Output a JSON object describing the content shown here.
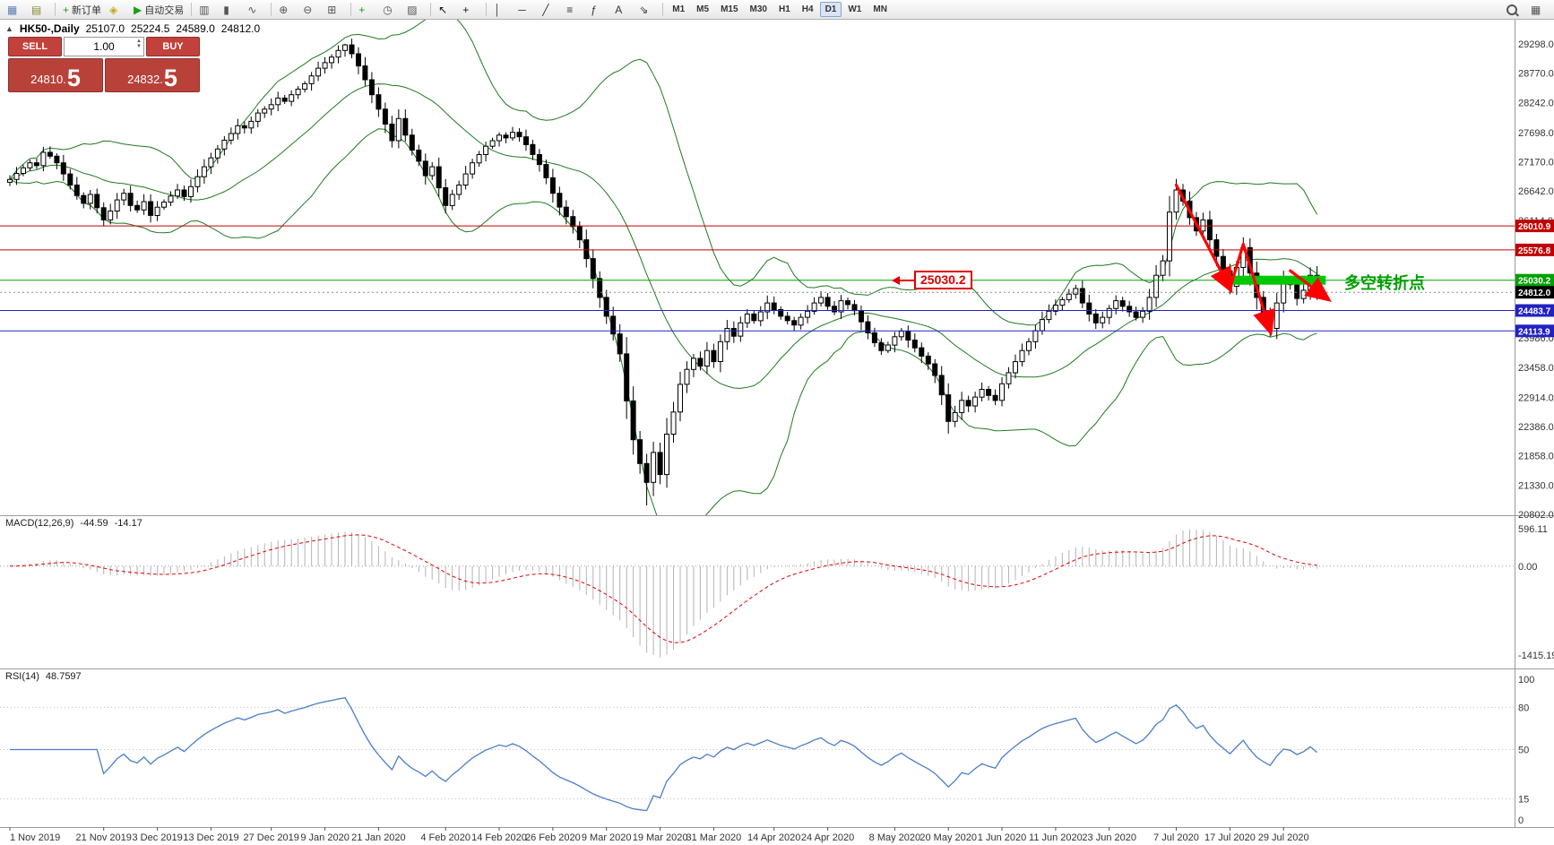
{
  "toolbar": {
    "buttons": [
      {
        "name": "new-chart-icon",
        "glyph": "▦",
        "color": "#5a7fb5"
      },
      {
        "name": "profiles-icon",
        "glyph": "▤",
        "color": "#8a8a33"
      },
      {
        "name": "sep"
      },
      {
        "name": "new-order-button",
        "glyph": "+",
        "glyph_color": "#18a018",
        "label": "新订单"
      },
      {
        "name": "metaeditor-icon",
        "glyph": "◈",
        "color": "#caa41a"
      },
      {
        "name": "autotrading-button",
        "glyph": "▶",
        "glyph_color": "#18a018",
        "label": "自动交易"
      },
      {
        "name": "sep"
      },
      {
        "name": "bars-icon",
        "glyph": "▥",
        "color": "#555555"
      },
      {
        "name": "candles-icon",
        "glyph": "▮",
        "color": "#555555"
      },
      {
        "name": "line-chart-icon",
        "glyph": "∿",
        "color": "#555555"
      },
      {
        "name": "sep"
      },
      {
        "name": "zoom-in-icon",
        "glyph": "⊕",
        "color": "#555555"
      },
      {
        "name": "zoom-out-icon",
        "glyph": "⊖",
        "color": "#555555"
      },
      {
        "name": "tile-windows-icon",
        "glyph": "⊞",
        "color": "#555555"
      },
      {
        "name": "sep"
      },
      {
        "name": "add-indicator-icon",
        "glyph": "+",
        "glyph_color": "#18a018"
      },
      {
        "name": "period-icon",
        "glyph": "◷",
        "color": "#555555"
      },
      {
        "name": "templates-icon",
        "glyph": "▨",
        "color": "#555555"
      },
      {
        "name": "sep"
      },
      {
        "name": "cursor-icon",
        "glyph": "↖",
        "color": "#111111"
      },
      {
        "name": "crosshair-icon",
        "glyph": "+",
        "color": "#111111"
      },
      {
        "name": "sep"
      },
      {
        "name": "vertical-line-icon",
        "glyph": "│",
        "color": "#333333"
      },
      {
        "name": "horizontal-line-icon",
        "glyph": "─",
        "color": "#333333"
      },
      {
        "name": "trendline-icon",
        "glyph": "╱",
        "color": "#333333"
      },
      {
        "name": "channel-icon",
        "glyph": "≡",
        "color": "#333333"
      },
      {
        "name": "fibonacci-icon",
        "glyph": "ƒ",
        "color": "#333333"
      },
      {
        "name": "text-icon",
        "glyph": "A",
        "color": "#333333"
      },
      {
        "name": "arrows-icon",
        "glyph": "⇘",
        "color": "#333333"
      },
      {
        "name": "sep"
      }
    ],
    "timeframes": [
      "M1",
      "M5",
      "M15",
      "M30",
      "H1",
      "H4",
      "D1",
      "W1",
      "MN"
    ],
    "active_timeframe": "D1",
    "right_icons": [
      {
        "name": "search-button",
        "css": "mag"
      },
      {
        "name": "layout-button",
        "glyph": "▦"
      }
    ]
  },
  "chart_header": {
    "marker": "▲",
    "symbol_period": "HK50-,Daily",
    "open": "25107.0",
    "high": "25224.5",
    "low": "24589.0",
    "close": "24812.0"
  },
  "trade_panel": {
    "sell_label": "SELL",
    "buy_label": "BUY",
    "volume": "1.00",
    "sell_price_small": "24810.",
    "sell_price_big": "5",
    "buy_price_small": "24832.",
    "buy_price_big": "5"
  },
  "panels": {
    "macd": {
      "label": "MACD(12,26,9)",
      "value_main": "-44.59",
      "value_signal": "-14.17",
      "scale_top": "596.11",
      "scale_zero": "0.00",
      "scale_bottom": "-1415.19"
    },
    "rsi": {
      "label": "RSI(14)",
      "value": "48.7597",
      "scale": [
        "100",
        "80",
        "50",
        "15",
        "0"
      ],
      "levels": [
        80,
        50,
        15
      ]
    }
  },
  "annotations": {
    "callout_text": "25030.2",
    "turning_text": "多空转折点",
    "zigzag_points": [
      [
        174,
        26750
      ],
      [
        182,
        24880
      ],
      [
        184,
        25680
      ],
      [
        188,
        24120
      ]
    ],
    "arrow2": [
      [
        191,
        25200
      ],
      [
        196.5,
        24700
      ]
    ],
    "band": {
      "from_idx": 181.5,
      "to_idx": 196.3,
      "price": 25030.2
    }
  },
  "colors": {
    "bull": "#ffffff",
    "bear": "#000000",
    "bollinger": "#1f7a1f",
    "macd_hist": "#b4b4b4",
    "macd_signal": "#e00000",
    "rsi_line": "#4a7dc8",
    "zigzag": "#ff0000",
    "band": "#00c800"
  },
  "chart_data": {
    "type": "candlestick",
    "symbol": "HK50-",
    "timeframe": "Daily",
    "first_open": 26800,
    "closes": [
      26850,
      26960,
      27060,
      27150,
      27100,
      27340,
      27270,
      27150,
      26950,
      26750,
      26560,
      26420,
      26580,
      26340,
      26120,
      26280,
      26480,
      26600,
      26380,
      26300,
      26450,
      26200,
      26350,
      26440,
      26550,
      26660,
      26540,
      26720,
      26900,
      27080,
      27240,
      27400,
      27560,
      27680,
      27820,
      27780,
      27900,
      28050,
      28120,
      28200,
      28320,
      28260,
      28380,
      28480,
      28580,
      28720,
      28860,
      28960,
      29060,
      29180,
      29280,
      29120,
      28900,
      28650,
      28380,
      28120,
      27850,
      27550,
      27950,
      27650,
      27380,
      27180,
      26920,
      27080,
      26700,
      26380,
      26580,
      26750,
      26950,
      27150,
      27300,
      27450,
      27550,
      27650,
      27600,
      27700,
      27620,
      27480,
      27300,
      27120,
      26880,
      26600,
      26350,
      26180,
      26000,
      25760,
      25420,
      25060,
      24720,
      24380,
      24060,
      23700,
      22850,
      22150,
      21720,
      21380,
      21920,
      21520,
      22250,
      22650,
      23150,
      23420,
      23620,
      23480,
      23760,
      23560,
      23920,
      24160,
      24020,
      24260,
      24420,
      24300,
      24460,
      24620,
      24500,
      24380,
      24300,
      24220,
      24360,
      24470,
      24620,
      24720,
      24560,
      24460,
      24660,
      24590,
      24480,
      24280,
      24080,
      23900,
      23760,
      23860,
      24010,
      24110,
      23950,
      23810,
      23660,
      23520,
      23310,
      22960,
      22480,
      22640,
      22860,
      22760,
      22920,
      23060,
      22950,
      22860,
      23160,
      23360,
      23560,
      23760,
      23920,
      24120,
      24320,
      24470,
      24580,
      24680,
      24780,
      24880,
      24620,
      24420,
      24260,
      24360,
      24520,
      24660,
      24560,
      24460,
      24360,
      24470,
      24720,
      25120,
      25380,
      26260,
      26660,
      26460,
      26160,
      25920,
      26120,
      25760,
      25460,
      25200,
      24920,
      25260,
      25620,
      25160,
      24720,
      24420,
      24160,
      24620,
      25020,
      24950,
      24700,
      24850,
      25120,
      24812
    ],
    "wick_overrides": [
      {
        "idx": 95,
        "low": 20960
      },
      {
        "idx": 50,
        "high": 29300
      }
    ],
    "overlays": {
      "bollinger": {
        "period": 20,
        "deviation": 2
      }
    },
    "hlines": [
      {
        "value": 26010.9,
        "label": "26010.9",
        "color": "#c00000",
        "style": "solid"
      },
      {
        "value": 25576.8,
        "label": "25576.8",
        "color": "#c00000",
        "style": "solid"
      },
      {
        "value": 25030.2,
        "label": "25030.2",
        "color": "#00a000",
        "style": "solid"
      },
      {
        "value": 24812.0,
        "label": "24812.0",
        "color": "#888888",
        "style": "dotted",
        "label_bg": "#000000"
      },
      {
        "value": 24483.7,
        "label": "24483.7",
        "color": "#2222c2",
        "style": "solid"
      },
      {
        "value": 24113.9,
        "label": "24113.9",
        "color": "#2222c2",
        "style": "solid"
      }
    ],
    "y_ticks": [
      29298.0,
      28770.0,
      28242.0,
      27698.0,
      27170.0,
      26642.0,
      26114.0,
      23986.0,
      23458.0,
      22914.0,
      22386.0,
      21858.0,
      21330.0,
      20802.0
    ],
    "x_ticks": [
      {
        "label": "1 Nov 2019",
        "idx": 0
      },
      {
        "label": "21 Nov 2019",
        "idx": 14
      },
      {
        "label": "3 Dec 2019",
        "idx": 22
      },
      {
        "label": "13 Dec 2019",
        "idx": 30
      },
      {
        "label": "27 Dec 2019",
        "idx": 39
      },
      {
        "label": "9 Jan 2020",
        "idx": 47
      },
      {
        "label": "21 Jan 2020",
        "idx": 55
      },
      {
        "label": "4 Feb 2020",
        "idx": 65
      },
      {
        "label": "14 Feb 2020",
        "idx": 73
      },
      {
        "label": "26 Feb 2020",
        "idx": 81
      },
      {
        "label": "9 Mar 2020",
        "idx": 89
      },
      {
        "label": "19 Mar 2020",
        "idx": 97
      },
      {
        "label": "31 Mar 2020",
        "idx": 105
      },
      {
        "label": "14 Apr 2020",
        "idx": 114
      },
      {
        "label": "24 Apr 2020",
        "idx": 122
      },
      {
        "label": "8 May 2020",
        "idx": 132
      },
      {
        "label": "20 May 2020",
        "idx": 140
      },
      {
        "label": "1 Jun 2020",
        "idx": 148
      },
      {
        "label": "11 Jun 2020",
        "idx": 156
      },
      {
        "label": "23 Jun 2020",
        "idx": 164
      },
      {
        "label": "7 Jul 2020",
        "idx": 174
      },
      {
        "label": "17 Jul 2020",
        "idx": 182
      },
      {
        "label": "29 Jul 2020",
        "idx": 190
      }
    ]
  }
}
